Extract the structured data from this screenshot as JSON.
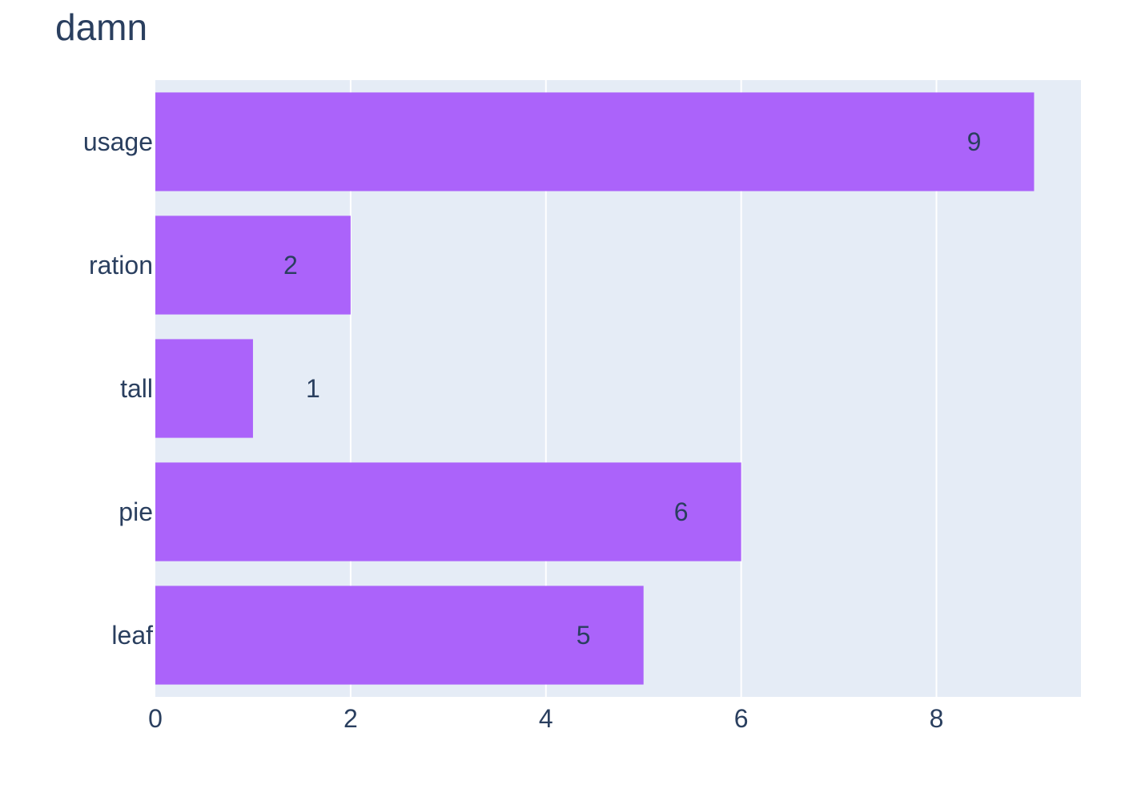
{
  "chart_data": {
    "type": "bar",
    "orientation": "horizontal",
    "title": "damn",
    "categories": [
      "usage",
      "ration",
      "tall",
      "pie",
      "leaf"
    ],
    "values": [
      9,
      2,
      1,
      6,
      5
    ],
    "data_labels": [
      "9",
      "2",
      "1",
      "6",
      "5"
    ],
    "xlim": [
      0,
      9.48
    ],
    "x_ticks": [
      0,
      2,
      4,
      6,
      8
    ],
    "x_tick_labels": [
      "0",
      "2",
      "4",
      "6",
      "8"
    ],
    "xlabel": "",
    "ylabel": "",
    "grid": true,
    "legend": false
  },
  "colors": {
    "bar": "#ab63fa",
    "plot_background": "#e5ecf6",
    "grid": "#ffffff",
    "text": "#2a3f5f"
  }
}
